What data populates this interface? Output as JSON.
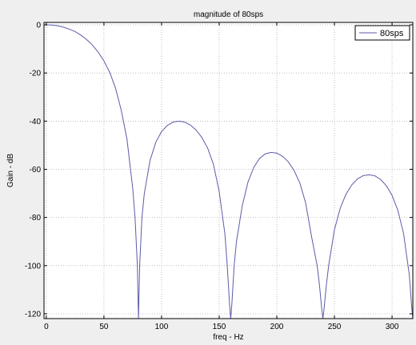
{
  "chart_data": {
    "type": "line",
    "title": "magnitude of 80sps",
    "xlabel": "freq - Hz",
    "ylabel": "Gain - dB",
    "xlim": [
      -2,
      318
    ],
    "ylim": [
      -122,
      1
    ],
    "xticks": [
      0,
      50,
      100,
      150,
      200,
      250,
      300
    ],
    "yticks": [
      0,
      -20,
      -40,
      -60,
      -80,
      -100,
      -120
    ],
    "grid": true,
    "legend": {
      "position": "top-right"
    },
    "series": [
      {
        "name": "80sps",
        "color": "#5c5ca8",
        "x": [
          0,
          5,
          10,
          15,
          20,
          25,
          30,
          35,
          40,
          45,
          50,
          55,
          60,
          65,
          70,
          75,
          77,
          79,
          80,
          81,
          83,
          85,
          90,
          95,
          100,
          105,
          110,
          115,
          120,
          125,
          130,
          135,
          140,
          145,
          150,
          155,
          157,
          159,
          160,
          161,
          163,
          165,
          170,
          175,
          180,
          185,
          190,
          195,
          200,
          205,
          210,
          215,
          220,
          225,
          230,
          235,
          237,
          239,
          240,
          241,
          243,
          245,
          250,
          255,
          260,
          265,
          270,
          275,
          280,
          285,
          290,
          295,
          300,
          305,
          310,
          315,
          317,
          318
        ],
        "values": [
          0,
          -0.1,
          -0.4,
          -1.0,
          -1.8,
          -2.8,
          -4.3,
          -6.1,
          -8.4,
          -11.3,
          -15.0,
          -19.7,
          -26.2,
          -35.4,
          -47.5,
          -68.0,
          -80.0,
          -100.0,
          -122.0,
          -100.0,
          -80.0,
          -70.2,
          -56.3,
          -48.8,
          -44.3,
          -41.8,
          -40.4,
          -40.0,
          -40.4,
          -41.6,
          -43.7,
          -46.8,
          -51.2,
          -57.9,
          -69.2,
          -87.0,
          -100.0,
          -116.0,
          -122.0,
          -116.0,
          -100.0,
          -90.0,
          -75.2,
          -65.3,
          -59.2,
          -55.5,
          -53.6,
          -53.0,
          -53.3,
          -54.6,
          -56.9,
          -60.5,
          -65.7,
          -73.9,
          -87.6,
          -100.0,
          -108.0,
          -118.0,
          -122.0,
          -118.0,
          -108.0,
          -100.0,
          -85.1,
          -76.2,
          -70.4,
          -66.5,
          -64.0,
          -62.6,
          -62.3,
          -62.7,
          -64.2,
          -66.8,
          -70.8,
          -77.0,
          -86.7,
          -104.0,
          -117.0,
          -122.0
        ]
      }
    ]
  }
}
